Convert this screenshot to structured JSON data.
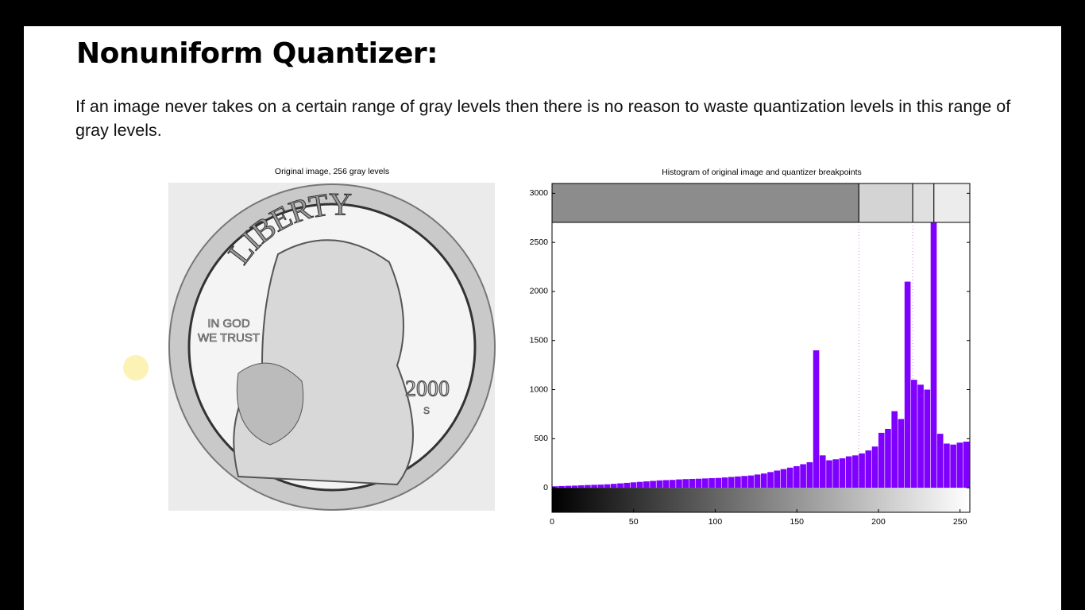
{
  "slide": {
    "title": "Nonuniform Quantizer:",
    "body": "If an image never takes on a certain range of gray levels then there is no reason to waste quantization levels in this range of gray levels."
  },
  "figure_left": {
    "title": "Original image, 256 gray levels",
    "inscriptions": [
      "LIBERTY",
      "IN GOD",
      "WE TRUST",
      "2000",
      "S"
    ]
  },
  "chart_data": {
    "type": "histogram",
    "title": "Histogram of original image and quantizer breakpoints",
    "color": "#7f00ff",
    "bins": [
      0,
      4,
      8,
      12,
      16,
      20,
      24,
      28,
      32,
      36,
      40,
      44,
      48,
      52,
      56,
      60,
      64,
      68,
      72,
      76,
      80,
      84,
      88,
      92,
      96,
      100,
      104,
      108,
      112,
      116,
      120,
      124,
      128,
      132,
      136,
      140,
      144,
      148,
      152,
      156,
      160,
      164,
      168,
      172,
      176,
      180,
      184,
      188,
      192,
      196,
      200,
      204,
      208,
      212,
      216,
      220,
      224,
      228,
      232,
      236,
      240,
      244,
      248,
      252,
      256
    ],
    "values": [
      15,
      18,
      20,
      22,
      25,
      28,
      30,
      32,
      35,
      40,
      45,
      50,
      55,
      60,
      65,
      70,
      75,
      78,
      80,
      85,
      88,
      90,
      92,
      95,
      98,
      100,
      105,
      110,
      115,
      120,
      125,
      135,
      145,
      160,
      175,
      190,
      205,
      220,
      240,
      260,
      1400,
      330,
      280,
      290,
      300,
      320,
      330,
      350,
      380,
      420,
      560,
      600,
      780,
      700,
      2100,
      1100,
      1050,
      1000,
      2700,
      550,
      450,
      440,
      460,
      470
    ],
    "breakpoints": [
      188,
      221,
      234
    ],
    "level_colors": [
      "#8c8c8c",
      "#d4d4d4",
      "#e0e0e0",
      "#ececec"
    ],
    "xlim": [
      0,
      256
    ],
    "ylim": [
      -250,
      3100
    ],
    "xticks": [
      0,
      50,
      100,
      150,
      200,
      250
    ],
    "yticks": [
      0,
      500,
      1000,
      1500,
      2000,
      2500,
      3000
    ]
  }
}
